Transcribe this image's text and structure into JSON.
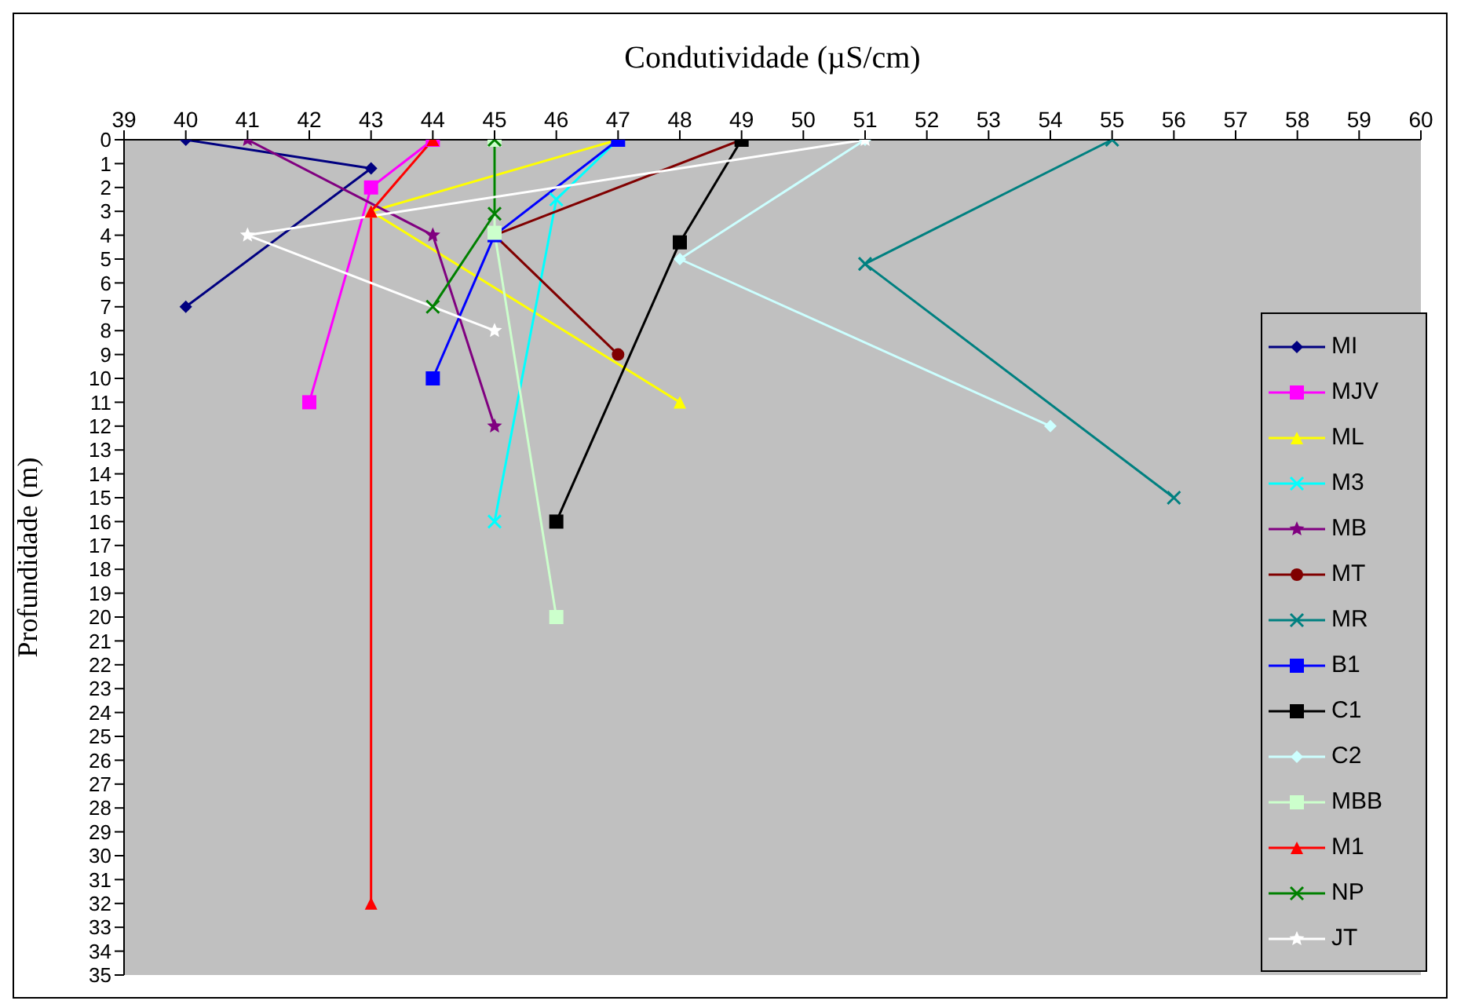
{
  "chart_data": {
    "type": "line",
    "xlabel": "Condutividade (µS/cm)",
    "ylabel": "Profundidade (m)",
    "xlim": [
      39,
      60
    ],
    "xticks": [
      39,
      40,
      41,
      42,
      43,
      44,
      45,
      46,
      47,
      48,
      49,
      50,
      51,
      52,
      53,
      54,
      55,
      56,
      57,
      58,
      59,
      60
    ],
    "ylim": [
      35,
      0
    ],
    "yticks": [
      0,
      1,
      2,
      3,
      4,
      5,
      6,
      7,
      8,
      9,
      10,
      11,
      12,
      13,
      14,
      15,
      16,
      17,
      18,
      19,
      20,
      21,
      22,
      23,
      24,
      25,
      26,
      27,
      28,
      29,
      30,
      31,
      32,
      33,
      34,
      35
    ],
    "grid": false,
    "legend": "right",
    "series": [
      {
        "name": "MI",
        "color": "#000080",
        "marker": "diamond",
        "x": [
          40,
          43,
          40
        ],
        "values": [
          0,
          1.2,
          7
        ]
      },
      {
        "name": "MJV",
        "color": "#ff00ff",
        "marker": "square",
        "x": [
          44,
          43,
          42
        ],
        "values": [
          0,
          2,
          11
        ]
      },
      {
        "name": "ML",
        "color": "#ffff00",
        "marker": "triangle",
        "x": [
          47,
          43,
          48
        ],
        "values": [
          0,
          3,
          11
        ]
      },
      {
        "name": "M3",
        "color": "#00ffff",
        "marker": "cross",
        "x": [
          47,
          46,
          45
        ],
        "values": [
          0,
          2.5,
          16
        ]
      },
      {
        "name": "MB",
        "color": "#800080",
        "marker": "star",
        "x": [
          41,
          44,
          45
        ],
        "values": [
          0,
          4,
          12
        ]
      },
      {
        "name": "MT",
        "color": "#800000",
        "marker": "circle",
        "x": [
          49,
          45,
          47
        ],
        "values": [
          0,
          4,
          9
        ]
      },
      {
        "name": "MR",
        "color": "#008080",
        "marker": "cross",
        "x": [
          55,
          51,
          56
        ],
        "values": [
          0,
          5.2,
          15
        ]
      },
      {
        "name": "B1",
        "color": "#0000ff",
        "marker": "square",
        "x": [
          47,
          45,
          44
        ],
        "values": [
          0,
          4,
          10
        ]
      },
      {
        "name": "C1",
        "color": "#000000",
        "marker": "square",
        "x": [
          49,
          48,
          46
        ],
        "values": [
          0,
          4.3,
          16
        ]
      },
      {
        "name": "C2",
        "color": "#ccffff",
        "marker": "diamond",
        "x": [
          51,
          48,
          54
        ],
        "values": [
          0,
          5,
          12
        ]
      },
      {
        "name": "MBB",
        "color": "#ccffcc",
        "marker": "square",
        "x": [
          45,
          45,
          46
        ],
        "values": [
          0,
          3.9,
          20
        ]
      },
      {
        "name": "M1",
        "color": "#ff0000",
        "marker": "triangle",
        "x": [
          44,
          43,
          43
        ],
        "values": [
          0,
          3,
          32
        ]
      },
      {
        "name": "NP",
        "color": "#008000",
        "marker": "cross",
        "x": [
          45,
          45,
          44
        ],
        "values": [
          0,
          3.1,
          7
        ]
      },
      {
        "name": "JT",
        "color": "#ffffff",
        "marker": "star",
        "x": [
          51,
          41,
          45
        ],
        "values": [
          0,
          4,
          8
        ]
      }
    ]
  }
}
